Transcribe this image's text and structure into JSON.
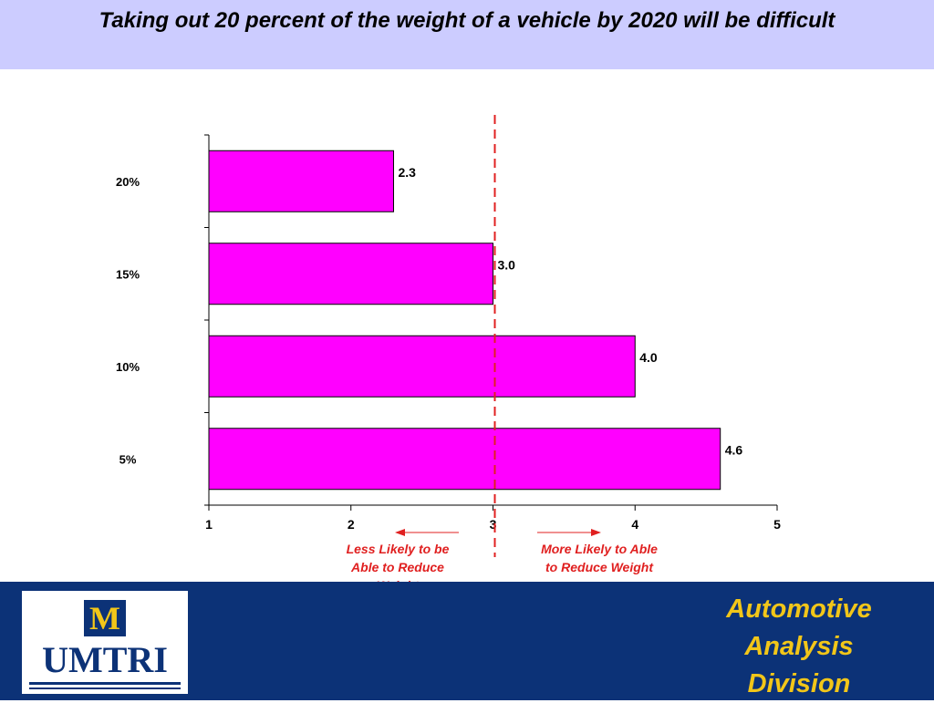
{
  "header": {
    "title": "Taking out 20 percent of the weight of a vehicle by 2020 will be difficult"
  },
  "chart_data": {
    "type": "bar",
    "orientation": "horizontal",
    "categories": [
      "20%",
      "15%",
      "10%",
      "5%"
    ],
    "values": [
      2.3,
      3.0,
      4.0,
      4.6
    ],
    "value_labels": [
      "2.3",
      "3.0",
      "4.0",
      "4.6"
    ],
    "x_ticks": [
      "1",
      "2",
      "3",
      "4",
      "5"
    ],
    "xlim": [
      1,
      5
    ],
    "reference_line": {
      "x": 3,
      "style": "dashed"
    },
    "annotations": {
      "left": "Less Likely to be Able to Reduce Weight",
      "right": "More Likely to Able to Reduce Weight"
    },
    "title": "",
    "xlabel": "",
    "ylabel": "",
    "grid": false,
    "legend": "none",
    "colors": {
      "bar": "#ff00ff",
      "reference": "#e02020",
      "annotation": "#e02020"
    }
  },
  "footer": {
    "logo_letter": "M",
    "logo_text": "UMTRI",
    "division": "Automotive\nAnalysis\nDivision"
  },
  "colors": {
    "title_band": "#ccccff",
    "footer_bg": "#0c3277",
    "maize": "#f2c619"
  }
}
